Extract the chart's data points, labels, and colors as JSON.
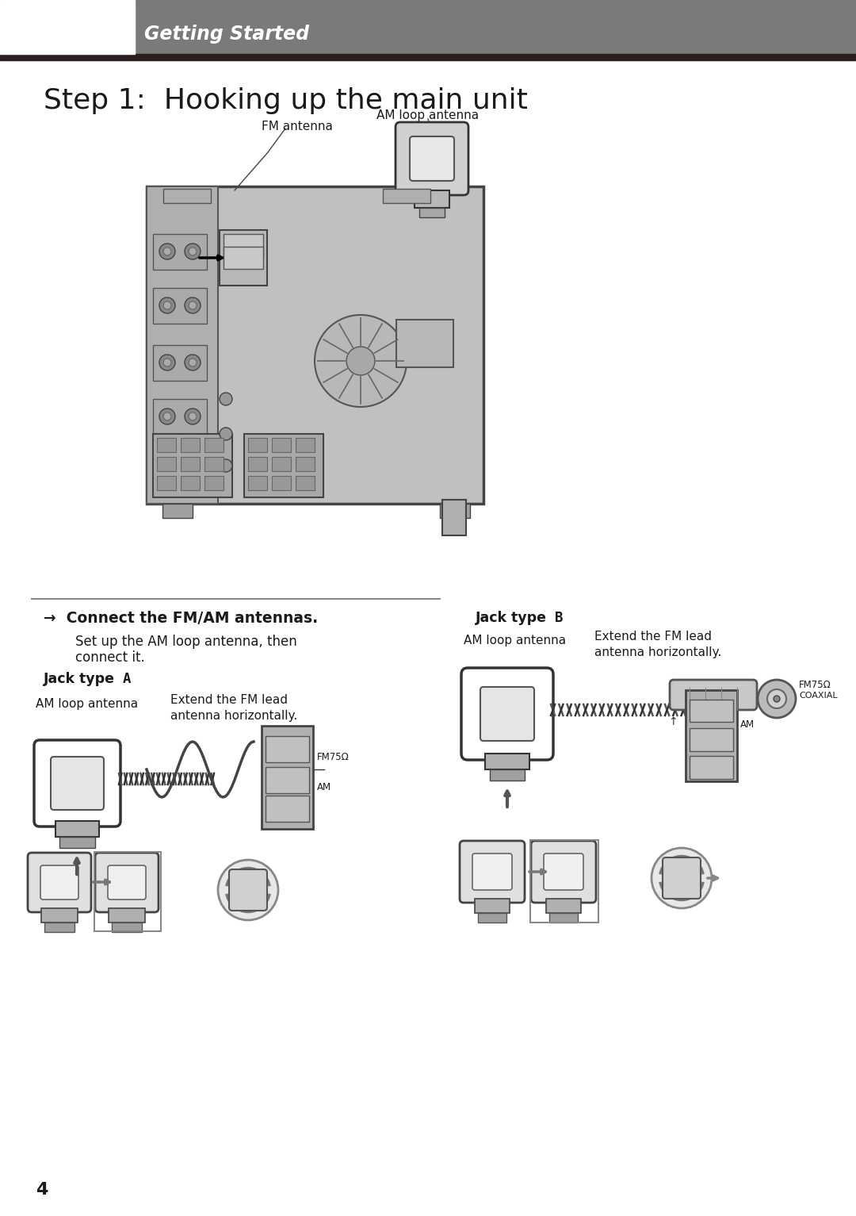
{
  "bg_color": "#ffffff",
  "header_bg": "#7a7a7a",
  "header_dark_strip": "#2a2020",
  "header_text": "Getting Started",
  "header_text_color": "#ffffff",
  "title": "Step 1:  Hooking up the main unit",
  "page_number": "4",
  "connect_text": "→  Connect the FM/AM antennas.",
  "connect_sub1": "Set up the AM loop antenna, then",
  "connect_sub2": "connect it.",
  "jack_a_text1": "Jack type ",
  "jack_a_text2": "A",
  "jack_b_text1": "Jack type ",
  "jack_b_text2": "B",
  "am_loop_label": "AM loop antenna",
  "fm_label_line1": "Extend the FM lead",
  "fm_label_line2": "antenna horizontally.",
  "fm75_label": "FM75Ω",
  "am_label": "AM",
  "coaxial_label": "COAXIAL",
  "am_antenna_top": "AM loop antenna",
  "fm_antenna_top": "FM antenna",
  "unit_fill": "#c0c0c0",
  "unit_edge": "#444444",
  "unit_side_fill": "#b0b0b0"
}
